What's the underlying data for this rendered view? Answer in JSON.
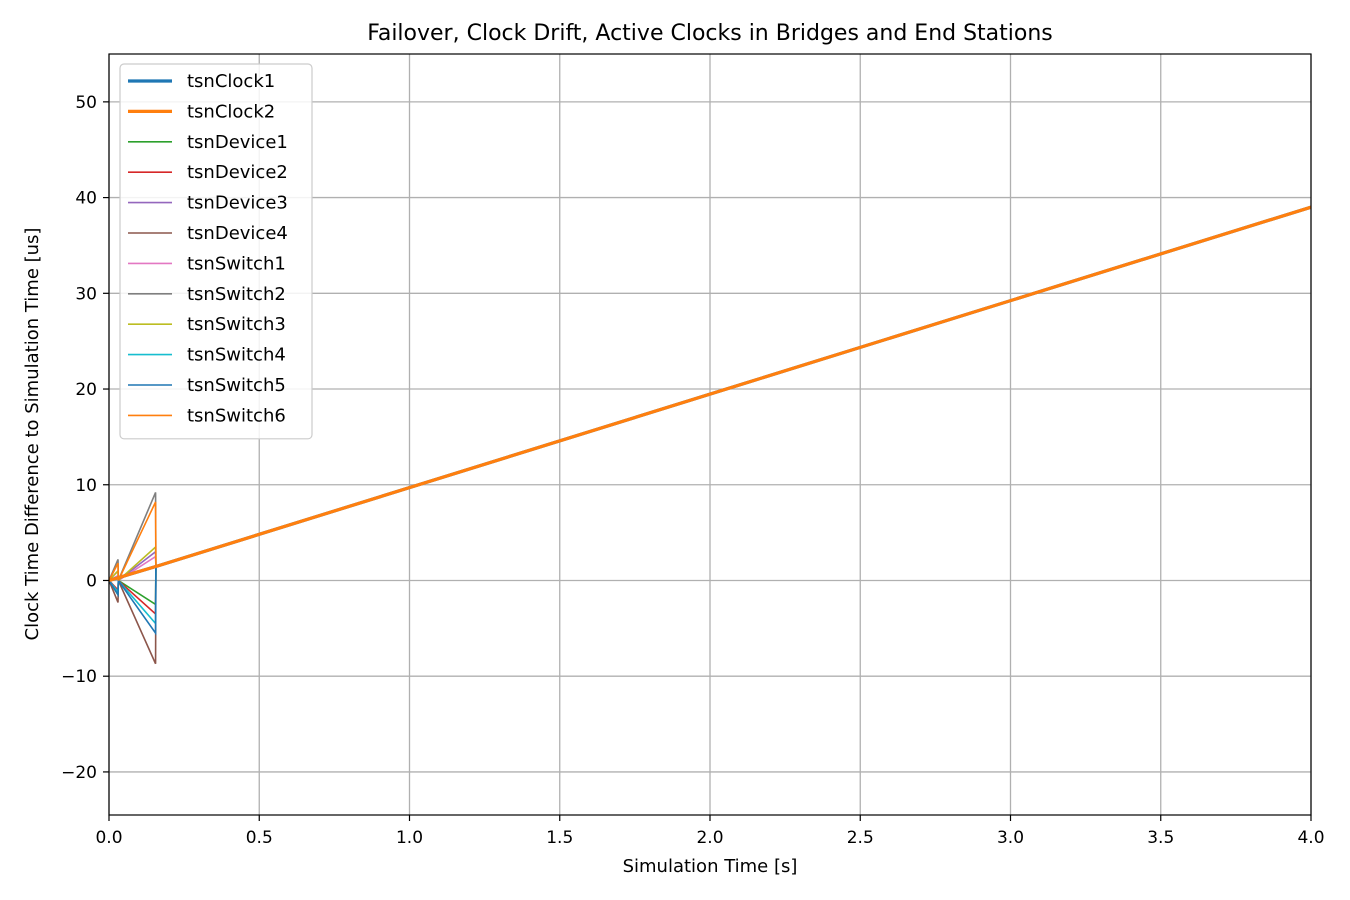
{
  "chart_data": {
    "type": "line",
    "title": "Failover, Clock Drift, Active Clocks in Bridges and End Stations",
    "xlabel": "Simulation Time [s]",
    "ylabel": "Clock Time Difference to Simulation Time [us]",
    "xlim": [
      0.0,
      4.0
    ],
    "ylim": [
      -24.5,
      55.0
    ],
    "xticks": [
      "0.0",
      "0.5",
      "1.0",
      "1.5",
      "2.0",
      "2.5",
      "3.0",
      "3.5",
      "4.0"
    ],
    "xtick_values": [
      0.0,
      0.5,
      1.0,
      1.5,
      2.0,
      2.5,
      3.0,
      3.5,
      4.0
    ],
    "yticks": [
      "−20",
      "−10",
      "0",
      "10",
      "20",
      "30",
      "40",
      "50"
    ],
    "ytick_values": [
      -20,
      -10,
      0,
      10,
      20,
      30,
      40,
      50
    ],
    "grid": true,
    "legend_position": "top-left",
    "series": [
      {
        "name": "tsnClock1",
        "color": "#1f77b4",
        "width": "thick",
        "x": [
          0.0,
          0.16,
          4.0
        ],
        "y": [
          0.0,
          1.5,
          39.0
        ]
      },
      {
        "name": "tsnClock2",
        "color": "#ff7f0e",
        "width": "thick",
        "x": [
          0.0,
          0.16,
          4.0
        ],
        "y": [
          0.0,
          1.5,
          39.0
        ]
      },
      {
        "name": "tsnDevice1",
        "color": "#2ca02c",
        "width": "thin",
        "x": [
          0.0,
          0.03,
          0.031,
          0.155,
          0.156,
          4.0
        ],
        "y": [
          0.0,
          -1.5,
          0.0,
          -2.5,
          1.5,
          39.0
        ]
      },
      {
        "name": "tsnDevice2",
        "color": "#d62728",
        "width": "thin",
        "x": [
          0.0,
          0.03,
          0.031,
          0.155,
          0.156,
          4.0
        ],
        "y": [
          0.0,
          -1.0,
          0.0,
          -3.5,
          1.5,
          39.0
        ]
      },
      {
        "name": "tsnDevice3",
        "color": "#9467bd",
        "width": "thin",
        "x": [
          0.0,
          0.03,
          0.031,
          0.155,
          0.156,
          4.0
        ],
        "y": [
          0.0,
          1.0,
          0.0,
          3.0,
          1.5,
          39.0
        ]
      },
      {
        "name": "tsnDevice4",
        "color": "#8c564b",
        "width": "thin",
        "x": [
          0.0,
          0.03,
          0.031,
          0.155,
          0.156,
          4.0
        ],
        "y": [
          0.0,
          -2.3,
          0.0,
          -8.7,
          1.5,
          39.0
        ]
      },
      {
        "name": "tsnSwitch1",
        "color": "#e377c2",
        "width": "thin",
        "x": [
          0.0,
          0.03,
          0.031,
          0.155,
          0.156,
          4.0
        ],
        "y": [
          0.0,
          0.5,
          0.0,
          2.5,
          1.5,
          39.0
        ]
      },
      {
        "name": "tsnSwitch2",
        "color": "#7f7f7f",
        "width": "thin",
        "x": [
          0.0,
          0.03,
          0.031,
          0.155,
          0.156,
          4.0
        ],
        "y": [
          0.0,
          2.2,
          0.0,
          9.2,
          1.5,
          39.0
        ]
      },
      {
        "name": "tsnSwitch3",
        "color": "#bcbd22",
        "width": "thin",
        "x": [
          0.0,
          0.03,
          0.031,
          0.155,
          0.156,
          4.0
        ],
        "y": [
          0.0,
          1.0,
          0.0,
          3.5,
          1.5,
          39.0
        ]
      },
      {
        "name": "tsnSwitch4",
        "color": "#17becf",
        "width": "thin",
        "x": [
          0.0,
          0.03,
          0.031,
          0.155,
          0.156,
          4.0
        ],
        "y": [
          0.0,
          -1.2,
          0.0,
          -4.5,
          1.5,
          39.0
        ]
      },
      {
        "name": "tsnSwitch5",
        "color": "#1f77b4",
        "width": "thin",
        "x": [
          0.0,
          0.03,
          0.031,
          0.155,
          0.156,
          4.0
        ],
        "y": [
          0.0,
          -1.5,
          0.0,
          -5.5,
          1.5,
          39.0
        ]
      },
      {
        "name": "tsnSwitch6",
        "color": "#ff7f0e",
        "width": "thin",
        "x": [
          0.0,
          0.03,
          0.031,
          0.155,
          0.156,
          4.0
        ],
        "y": [
          0.0,
          1.8,
          0.0,
          8.2,
          1.5,
          39.0
        ]
      }
    ]
  }
}
